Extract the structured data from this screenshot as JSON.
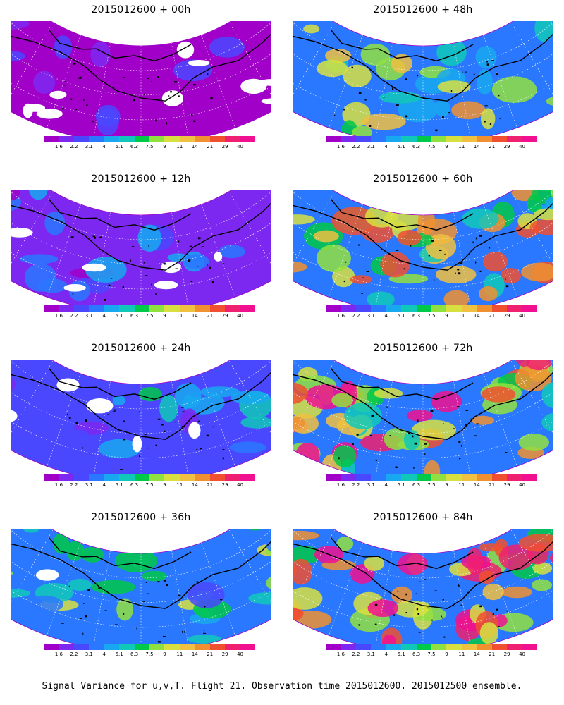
{
  "colorbar": {
    "labels": [
      "1.6",
      "2.2",
      "3.1",
      "4",
      "5.1",
      "6.3",
      "7.5",
      "9",
      "11",
      "14",
      "21",
      "29",
      "40"
    ],
    "colors": [
      "#a000c8",
      "#7c28f0",
      "#4a48ff",
      "#2a78ff",
      "#18a8f0",
      "#10c8b8",
      "#00c848",
      "#90e040",
      "#d8e040",
      "#f0c040",
      "#f09030",
      "#f05030",
      "#f02070",
      "#f01090"
    ]
  },
  "panels": [
    {
      "title": "2015012600 + 00h",
      "level": 0
    },
    {
      "title": "2015012600 + 48h",
      "level": 4
    },
    {
      "title": "2015012600 + 12h",
      "level": 1
    },
    {
      "title": "2015012600 + 60h",
      "level": 5
    },
    {
      "title": "2015012600 + 24h",
      "level": 2
    },
    {
      "title": "2015012600 + 72h",
      "level": 6
    },
    {
      "title": "2015012600 + 36h",
      "level": 3
    },
    {
      "title": "2015012600 + 84h",
      "level": 7
    }
  ],
  "caption": "Signal Variance for u,v,T. Flight 21. Observation time 2015012600. 2015012500 ensemble."
}
